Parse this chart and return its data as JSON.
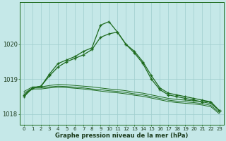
{
  "xlabel": "Graphe pression niveau de la mer (hPa)",
  "background_color": "#c5e8e8",
  "grid_color": "#9fcece",
  "line_color": "#1e6b1e",
  "ylim": [
    1017.7,
    1021.2
  ],
  "yticks": [
    1018,
    1019,
    1020
  ],
  "xlim": [
    -0.5,
    23.5
  ],
  "x_labels": [
    "0",
    "1",
    "2",
    "3",
    "4",
    "5",
    "6",
    "7",
    "8",
    "9",
    "10",
    "11",
    "12",
    "13",
    "14",
    "15",
    "16",
    "17",
    "18",
    "19",
    "20",
    "21",
    "22",
    "23"
  ],
  "line_spike": [
    1018.55,
    1018.75,
    1018.8,
    1019.15,
    1019.45,
    1019.55,
    1019.65,
    1019.8,
    1019.9,
    1020.55,
    1020.65,
    1020.35,
    1020.0,
    1019.75,
    1019.45,
    1019.0,
    1018.7,
    1018.55,
    1018.5,
    1018.45,
    1018.4,
    1018.35,
    1018.35,
    1018.1
  ],
  "line_moderate": [
    1018.5,
    1018.75,
    1018.8,
    1019.1,
    1019.35,
    1019.5,
    1019.6,
    1019.7,
    1019.85,
    1020.2,
    1020.3,
    1020.35,
    1020.0,
    1019.8,
    1019.5,
    1019.1,
    1018.75,
    1018.6,
    1018.55,
    1018.5,
    1018.45,
    1018.4,
    1018.35,
    1018.1
  ],
  "line_flat1": [
    1018.65,
    1018.78,
    1018.78,
    1018.82,
    1018.85,
    1018.84,
    1018.82,
    1018.8,
    1018.78,
    1018.75,
    1018.72,
    1018.7,
    1018.67,
    1018.63,
    1018.6,
    1018.55,
    1018.5,
    1018.45,
    1018.42,
    1018.4,
    1018.38,
    1018.35,
    1018.3,
    1018.1
  ],
  "line_flat2": [
    1018.6,
    1018.75,
    1018.75,
    1018.78,
    1018.8,
    1018.79,
    1018.77,
    1018.75,
    1018.72,
    1018.7,
    1018.67,
    1018.65,
    1018.62,
    1018.58,
    1018.55,
    1018.5,
    1018.45,
    1018.4,
    1018.37,
    1018.35,
    1018.33,
    1018.3,
    1018.25,
    1018.05
  ],
  "line_flat3": [
    1018.55,
    1018.72,
    1018.72,
    1018.75,
    1018.77,
    1018.76,
    1018.74,
    1018.72,
    1018.69,
    1018.66,
    1018.63,
    1018.61,
    1018.58,
    1018.54,
    1018.51,
    1018.46,
    1018.41,
    1018.36,
    1018.33,
    1018.31,
    1018.29,
    1018.26,
    1018.21,
    1018.01
  ]
}
